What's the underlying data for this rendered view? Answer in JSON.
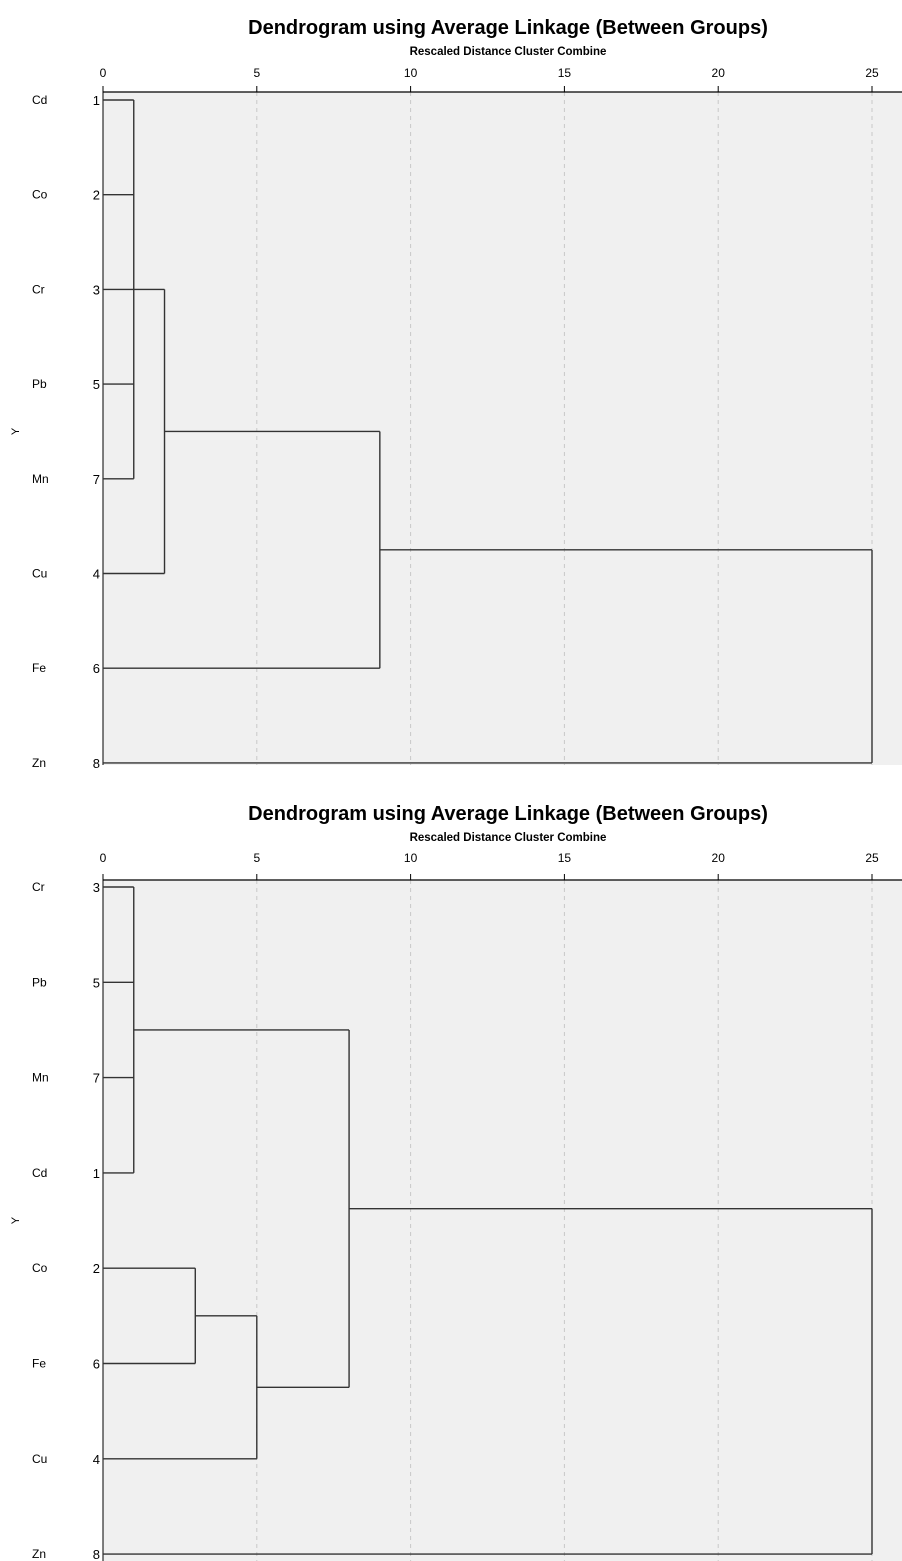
{
  "chart_data": [
    {
      "type": "dendrogram",
      "title": "Dendrogram using Average Linkage (Between Groups)",
      "subtitle": "Rescaled Distance Cluster Combine",
      "ylabel": "Y",
      "xlim": [
        0,
        25
      ],
      "xticks": [
        "0",
        "5",
        "10",
        "15",
        "20",
        "25"
      ],
      "grid": true,
      "leaves": [
        {
          "label": "Cd",
          "num": "1"
        },
        {
          "label": "Co",
          "num": "2"
        },
        {
          "label": "Cr",
          "num": "3"
        },
        {
          "label": "Pb",
          "num": "5"
        },
        {
          "label": "Mn",
          "num": "7"
        },
        {
          "label": "Cu",
          "num": "4"
        },
        {
          "label": "Fe",
          "num": "6"
        },
        {
          "label": "Zn",
          "num": "8"
        }
      ],
      "merges": [
        {
          "children": [
            "L0",
            "L1",
            "L2",
            "L3",
            "L4"
          ],
          "height": 1
        },
        {
          "children": [
            "M0",
            "L5"
          ],
          "height": 2
        },
        {
          "children": [
            "M1",
            "L6"
          ],
          "height": 9
        },
        {
          "children": [
            "M2",
            "L7"
          ],
          "height": 25
        }
      ]
    },
    {
      "type": "dendrogram",
      "title": "Dendrogram using Average Linkage (Between Groups)",
      "subtitle": "Rescaled Distance Cluster Combine",
      "ylabel": "Y",
      "xlim": [
        0,
        25
      ],
      "xticks": [
        "0",
        "5",
        "10",
        "15",
        "20",
        "25"
      ],
      "grid": true,
      "leaves": [
        {
          "label": "Cr",
          "num": "3"
        },
        {
          "label": "Pb",
          "num": "5"
        },
        {
          "label": "Mn",
          "num": "7"
        },
        {
          "label": "Cd",
          "num": "1"
        },
        {
          "label": "Co",
          "num": "2"
        },
        {
          "label": "Fe",
          "num": "6"
        },
        {
          "label": "Cu",
          "num": "4"
        },
        {
          "label": "Zn",
          "num": "8"
        }
      ],
      "merges": [
        {
          "children": [
            "L0",
            "L1",
            "L2",
            "L3"
          ],
          "height": 1
        },
        {
          "children": [
            "L4",
            "L5"
          ],
          "height": 3
        },
        {
          "children": [
            "M1",
            "L6"
          ],
          "height": 5
        },
        {
          "children": [
            "M0",
            "M2"
          ],
          "height": 8
        },
        {
          "children": [
            "M3",
            "L7"
          ],
          "height": 25
        }
      ]
    }
  ]
}
